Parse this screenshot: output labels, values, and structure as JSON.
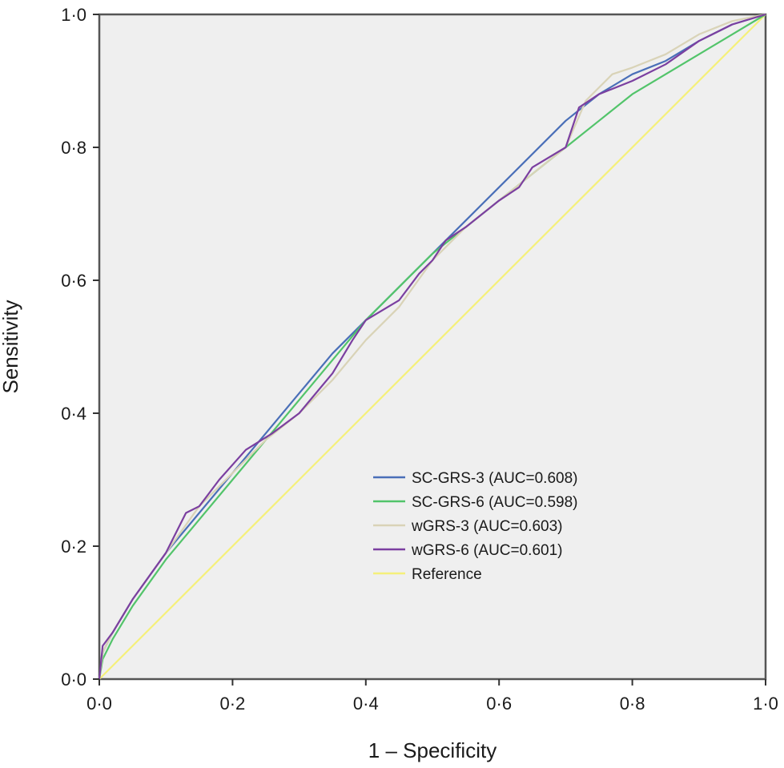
{
  "chart_data": {
    "type": "line",
    "title": "",
    "xlabel": "1 – Specificity",
    "ylabel": "Sensitivity",
    "xlim": [
      0,
      1
    ],
    "ylim": [
      0,
      1
    ],
    "x_ticks": [
      "0·0",
      "0·2",
      "0·4",
      "0·6",
      "0·8",
      "1·0"
    ],
    "y_ticks": [
      "0·0",
      "0·2",
      "0·4",
      "0·6",
      "0·8",
      "1·0"
    ],
    "grid": false,
    "legend_position": "center-right",
    "plot_background": "#efefef",
    "series": [
      {
        "name": "SC-GRS-3 (AUC=0.608)",
        "color": "#4a6fb8",
        "points": [
          [
            0,
            0
          ],
          [
            0.005,
            0.04
          ],
          [
            0.02,
            0.07
          ],
          [
            0.05,
            0.12
          ],
          [
            0.1,
            0.19
          ],
          [
            0.15,
            0.25
          ],
          [
            0.2,
            0.31
          ],
          [
            0.25,
            0.37
          ],
          [
            0.3,
            0.43
          ],
          [
            0.35,
            0.49
          ],
          [
            0.4,
            0.54
          ],
          [
            0.45,
            0.59
          ],
          [
            0.5,
            0.64
          ],
          [
            0.55,
            0.69
          ],
          [
            0.6,
            0.74
          ],
          [
            0.65,
            0.79
          ],
          [
            0.7,
            0.84
          ],
          [
            0.75,
            0.88
          ],
          [
            0.8,
            0.91
          ],
          [
            0.85,
            0.93
          ],
          [
            0.9,
            0.96
          ],
          [
            0.95,
            0.985
          ],
          [
            1,
            1
          ]
        ]
      },
      {
        "name": "SC-GRS-6 (AUC=0.598)",
        "color": "#52c46a",
        "points": [
          [
            0,
            0
          ],
          [
            0.005,
            0.03
          ],
          [
            0.02,
            0.06
          ],
          [
            0.05,
            0.11
          ],
          [
            0.1,
            0.18
          ],
          [
            0.15,
            0.24
          ],
          [
            0.2,
            0.3
          ],
          [
            0.25,
            0.36
          ],
          [
            0.3,
            0.42
          ],
          [
            0.35,
            0.48
          ],
          [
            0.4,
            0.54
          ],
          [
            0.45,
            0.59
          ],
          [
            0.5,
            0.64
          ],
          [
            0.55,
            0.68
          ],
          [
            0.6,
            0.72
          ],
          [
            0.65,
            0.76
          ],
          [
            0.7,
            0.8
          ],
          [
            0.75,
            0.84
          ],
          [
            0.8,
            0.88
          ],
          [
            0.85,
            0.91
          ],
          [
            0.9,
            0.94
          ],
          [
            0.95,
            0.97
          ],
          [
            1,
            1
          ]
        ]
      },
      {
        "name": "wGRS-3 (AUC=0.603)",
        "color": "#d9d3b7",
        "points": [
          [
            0,
            0
          ],
          [
            0.005,
            0.04
          ],
          [
            0.02,
            0.07
          ],
          [
            0.05,
            0.12
          ],
          [
            0.1,
            0.19
          ],
          [
            0.15,
            0.26
          ],
          [
            0.2,
            0.31
          ],
          [
            0.25,
            0.36
          ],
          [
            0.3,
            0.4
          ],
          [
            0.35,
            0.45
          ],
          [
            0.4,
            0.51
          ],
          [
            0.45,
            0.56
          ],
          [
            0.5,
            0.63
          ],
          [
            0.55,
            0.68
          ],
          [
            0.6,
            0.72
          ],
          [
            0.65,
            0.76
          ],
          [
            0.7,
            0.8
          ],
          [
            0.73,
            0.87
          ],
          [
            0.77,
            0.91
          ],
          [
            0.8,
            0.92
          ],
          [
            0.85,
            0.94
          ],
          [
            0.9,
            0.97
          ],
          [
            0.95,
            0.99
          ],
          [
            1,
            1
          ]
        ]
      },
      {
        "name": "wGRS-6 (AUC=0.601)",
        "color": "#7b3fa0",
        "points": [
          [
            0,
            0
          ],
          [
            0.005,
            0.05
          ],
          [
            0.02,
            0.07
          ],
          [
            0.05,
            0.12
          ],
          [
            0.1,
            0.19
          ],
          [
            0.13,
            0.25
          ],
          [
            0.15,
            0.26
          ],
          [
            0.18,
            0.3
          ],
          [
            0.22,
            0.345
          ],
          [
            0.26,
            0.37
          ],
          [
            0.3,
            0.4
          ],
          [
            0.35,
            0.46
          ],
          [
            0.38,
            0.51
          ],
          [
            0.4,
            0.54
          ],
          [
            0.45,
            0.57
          ],
          [
            0.48,
            0.61
          ],
          [
            0.5,
            0.63
          ],
          [
            0.52,
            0.66
          ],
          [
            0.55,
            0.68
          ],
          [
            0.6,
            0.72
          ],
          [
            0.63,
            0.74
          ],
          [
            0.65,
            0.77
          ],
          [
            0.7,
            0.8
          ],
          [
            0.72,
            0.86
          ],
          [
            0.75,
            0.88
          ],
          [
            0.8,
            0.9
          ],
          [
            0.85,
            0.925
          ],
          [
            0.9,
            0.96
          ],
          [
            0.95,
            0.985
          ],
          [
            1,
            1
          ]
        ]
      },
      {
        "name": "Reference",
        "color": "#f5f07a",
        "points": [
          [
            0,
            0
          ],
          [
            1,
            1
          ]
        ]
      }
    ]
  }
}
